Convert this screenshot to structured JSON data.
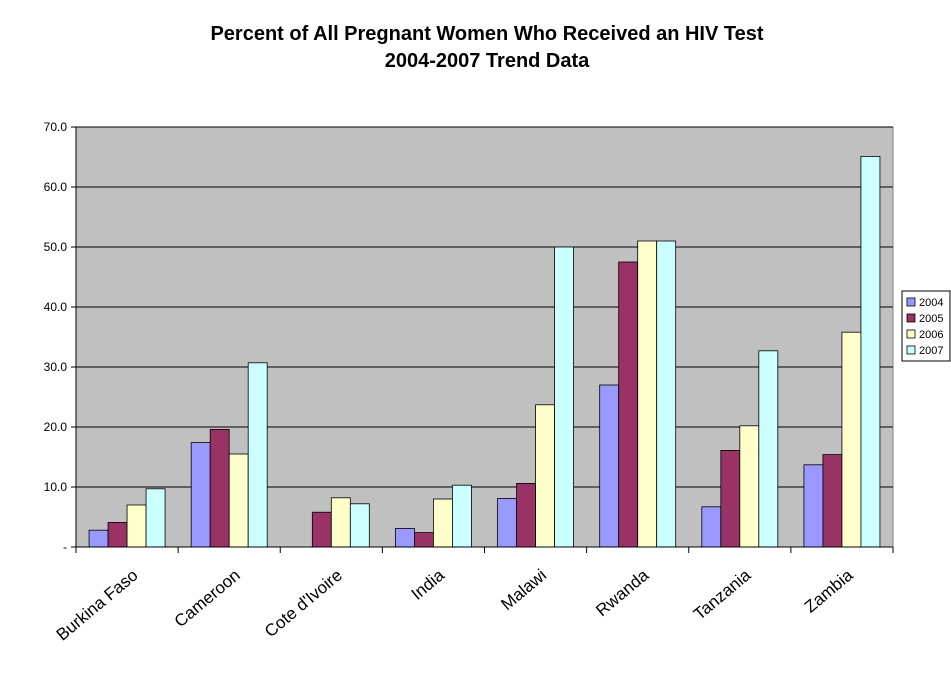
{
  "chart_data": {
    "type": "bar",
    "title": "Percent of All Pregnant Women Who Received an HIV Test",
    "subtitle": "2004-2007 Trend Data",
    "xlabel": "",
    "ylabel": "",
    "ylim": [
      0,
      70
    ],
    "yticks": [
      "-",
      "10.0",
      "20.0",
      "30.0",
      "40.0",
      "50.0",
      "60.0",
      "70.0"
    ],
    "grid": true,
    "legend_position": "right",
    "plot_background": "#c0c0c0",
    "categories": [
      "Burkina Faso",
      "Cameroon",
      "Cote d'Ivoire",
      "India",
      "Malawi",
      "Rwanda",
      "Tanzania",
      "Zambia"
    ],
    "series": [
      {
        "name": "2004",
        "color": "#9999ff",
        "values": [
          2.8,
          17.4,
          null,
          3.1,
          8.1,
          27.0,
          6.7,
          13.7
        ]
      },
      {
        "name": "2005",
        "color": "#993366",
        "values": [
          4.1,
          19.6,
          5.8,
          2.4,
          10.6,
          47.5,
          16.1,
          15.4
        ]
      },
      {
        "name": "2006",
        "color": "#ffffcc",
        "values": [
          7.0,
          15.5,
          8.2,
          8.0,
          23.7,
          51.0,
          20.2,
          35.8
        ]
      },
      {
        "name": "2007",
        "color": "#ccffff",
        "values": [
          9.7,
          30.7,
          7.2,
          10.3,
          50.0,
          51.0,
          32.7,
          65.1
        ]
      }
    ]
  }
}
